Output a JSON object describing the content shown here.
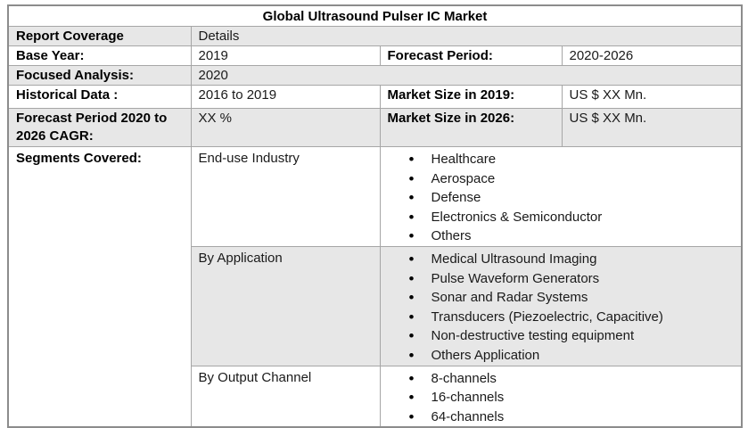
{
  "colors": {
    "row_shade": "#e7e7e7",
    "border_outer": "#8c8c8c",
    "border_inner": "#a6a6a6",
    "text": "#1a1a1a"
  },
  "table": {
    "title": "Global Ultrasound Pulser IC Market",
    "report_coverage": {
      "label": "Report Coverage",
      "value": "Details"
    },
    "base_year": {
      "label": "Base Year:",
      "value": "2019"
    },
    "forecast_period": {
      "label": "Forecast Period:",
      "value": "2020-2026"
    },
    "focused_analysis": {
      "label": "Focused Analysis:",
      "value": "2020"
    },
    "historical_data": {
      "label": "Historical Data :",
      "value": "2016 to 2019"
    },
    "market_size_2019": {
      "label": "Market Size in 2019:",
      "value": "US $ XX Mn."
    },
    "cagr": {
      "label": "Forecast Period 2020 to 2026 CAGR:",
      "value": "XX %"
    },
    "market_size_2026": {
      "label": "Market Size in 2026:",
      "value": "US $ XX Mn."
    },
    "segments": {
      "label": "Segments Covered:",
      "groups": [
        {
          "name": "End-use Industry",
          "items": [
            "Healthcare",
            "Aerospace",
            "Defense",
            "Electronics & Semiconductor",
            "Others"
          ]
        },
        {
          "name": "By Application",
          "items": [
            "Medical Ultrasound Imaging",
            "Pulse Waveform Generators",
            "Sonar and Radar Systems",
            "Transducers (Piezoelectric, Capacitive)",
            "Non-destructive testing equipment",
            "Others Application"
          ]
        },
        {
          "name": "By Output Channel",
          "items": [
            "8-channels",
            "16-channels",
            "64-channels"
          ]
        }
      ]
    }
  }
}
